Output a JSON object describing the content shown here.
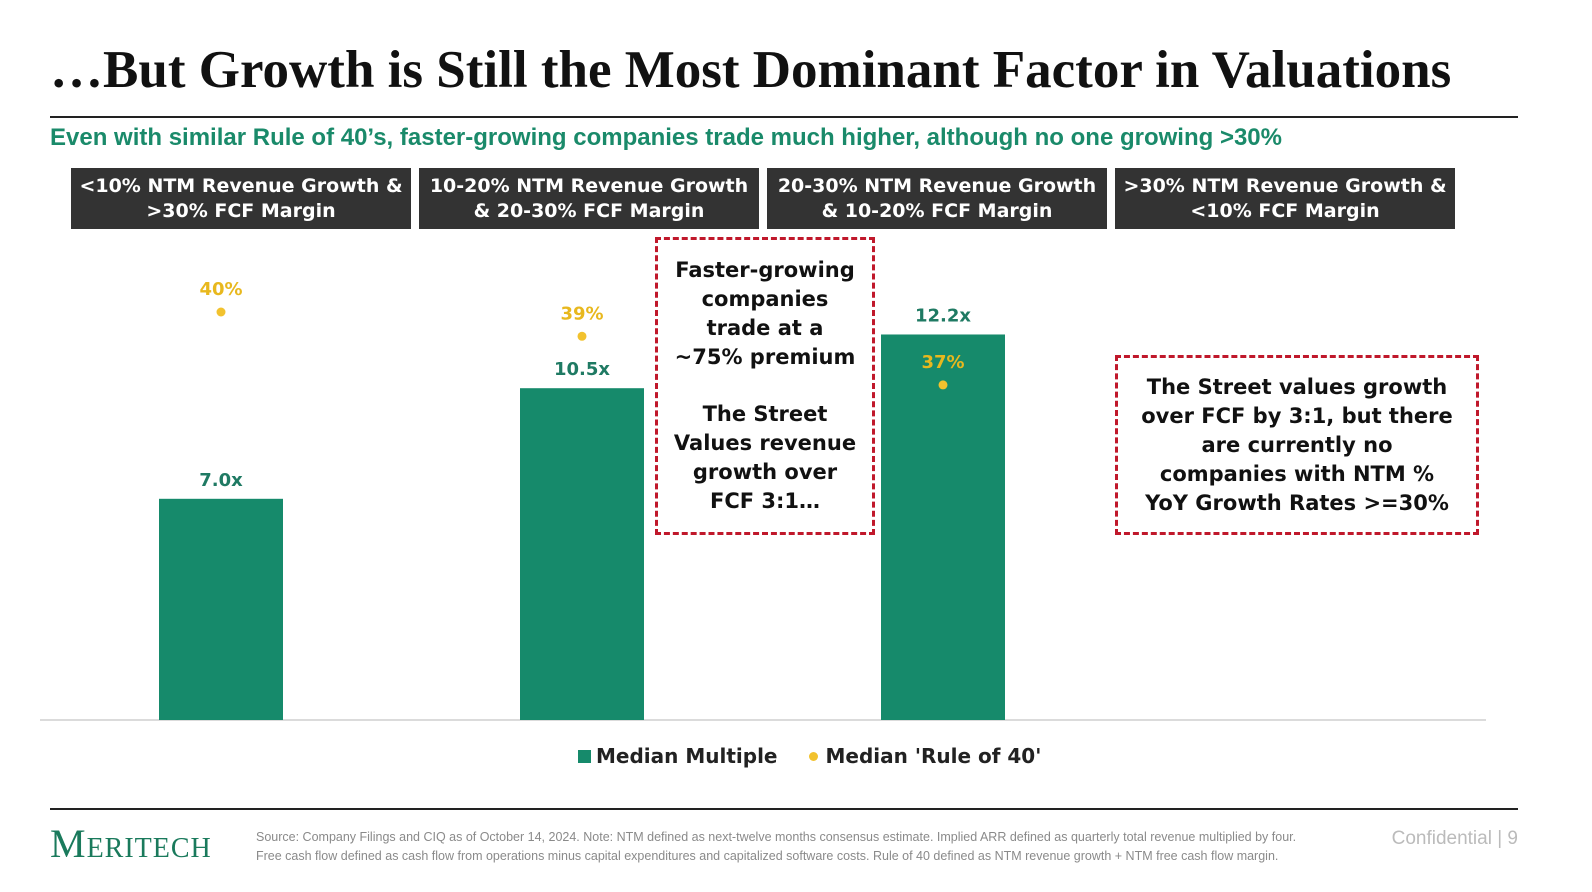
{
  "title": "…But Growth is Still the Most Dominant Factor in Valuations",
  "subtitle": "Even with similar Rule of 40’s, faster-growing companies trade much higher, although no one growing >30%",
  "category_boxes": [
    "<10% NTM Revenue Growth & >30% FCF Margin",
    "10-20% NTM Revenue Growth & 20-30% FCF Margin",
    "20-30% NTM Revenue Growth & 10-20% FCF Margin",
    ">30% NTM Revenue Growth & <10% FCF Margin"
  ],
  "callout_1": {
    "line1": "Faster-growing companies trade at a ~75% premium",
    "line2": "The Street Values revenue growth over FCF 3:1…"
  },
  "callout_2": "The Street values growth over FCF by 3:1, but there are currently no companies with NTM % YoY Growth Rates >=30%",
  "chart_data": {
    "type": "bar",
    "categories": [
      "<10% NTM Revenue Growth & >30% FCF Margin",
      "10-20% NTM Revenue Growth & 20-30% FCF Margin",
      "20-30% NTM Revenue Growth & 10-20% FCF Margin",
      ">30% NTM Revenue Growth & <10% FCF Margin"
    ],
    "series": [
      {
        "name": "Median Multiple",
        "values": [
          7.0,
          10.5,
          12.2,
          null
        ],
        "labels": [
          "7.0x",
          "10.5x",
          "12.2x",
          ""
        ],
        "color": "#168a6b"
      },
      {
        "name": "Median 'Rule of 40'",
        "values": [
          40,
          39,
          37,
          null
        ],
        "labels": [
          "40%",
          "39%",
          "37%",
          ""
        ],
        "color": "#f2c22e"
      }
    ],
    "legend": "bottom-center",
    "grid": false
  },
  "legend": {
    "bar_label": "Median Multiple",
    "dot_label": "Median 'Rule of 40'"
  },
  "footer": {
    "logo": "Meritech",
    "source_line1": "Source: Company Filings and CIQ as of October 14, 2024. Note: NTM defined as next-twelve months consensus estimate. Implied ARR defined as quarterly total revenue multiplied by four.",
    "source_line2": "Free cash flow defined as cash flow from operations minus capital expenditures and capitalized software costs. Rule of 40 defined as NTM revenue growth + NTM free cash flow margin.",
    "confidential": "Confidential | 9"
  },
  "colors": {
    "accent_green": "#168a6b",
    "subtitle_green": "#1a8a6a",
    "rule40_yellow": "#f2c22e",
    "callout_red": "#c0182b",
    "box_dark": "#333333"
  }
}
